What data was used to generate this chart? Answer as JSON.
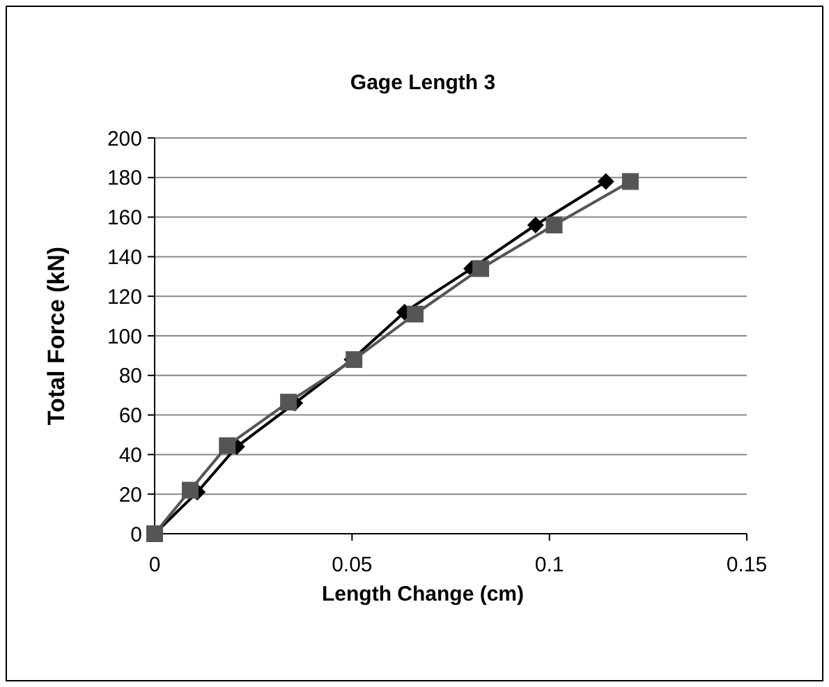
{
  "chart_data": {
    "type": "line",
    "title": "Gage Length 3",
    "xlabel": "Length Change (cm)",
    "ylabel": "Total Force (kN)",
    "xlim": [
      0,
      0.15
    ],
    "xticks": [
      0,
      0.05,
      0.1,
      0.15
    ],
    "ylim": [
      0,
      200
    ],
    "yticks": [
      0,
      20,
      40,
      60,
      80,
      100,
      120,
      140,
      160,
      180,
      200
    ],
    "grid": "y",
    "line_style": "solid",
    "series": [
      {
        "color": "#000000",
        "marker": "diamond",
        "x": [
          0,
          0.0108,
          0.0208,
          0.0355,
          0.05,
          0.0633,
          0.0803,
          0.0965,
          0.1143
        ],
        "values": [
          0,
          21,
          44,
          66,
          88,
          112,
          134,
          156,
          178
        ]
      },
      {
        "color": "#555555",
        "marker": "square",
        "x": [
          0,
          0.009,
          0.0184,
          0.0339,
          0.0505,
          0.066,
          0.0826,
          0.1012,
          0.1205
        ],
        "values": [
          0,
          22,
          44.5,
          66.5,
          88,
          111,
          134,
          156,
          178
        ]
      }
    ]
  }
}
